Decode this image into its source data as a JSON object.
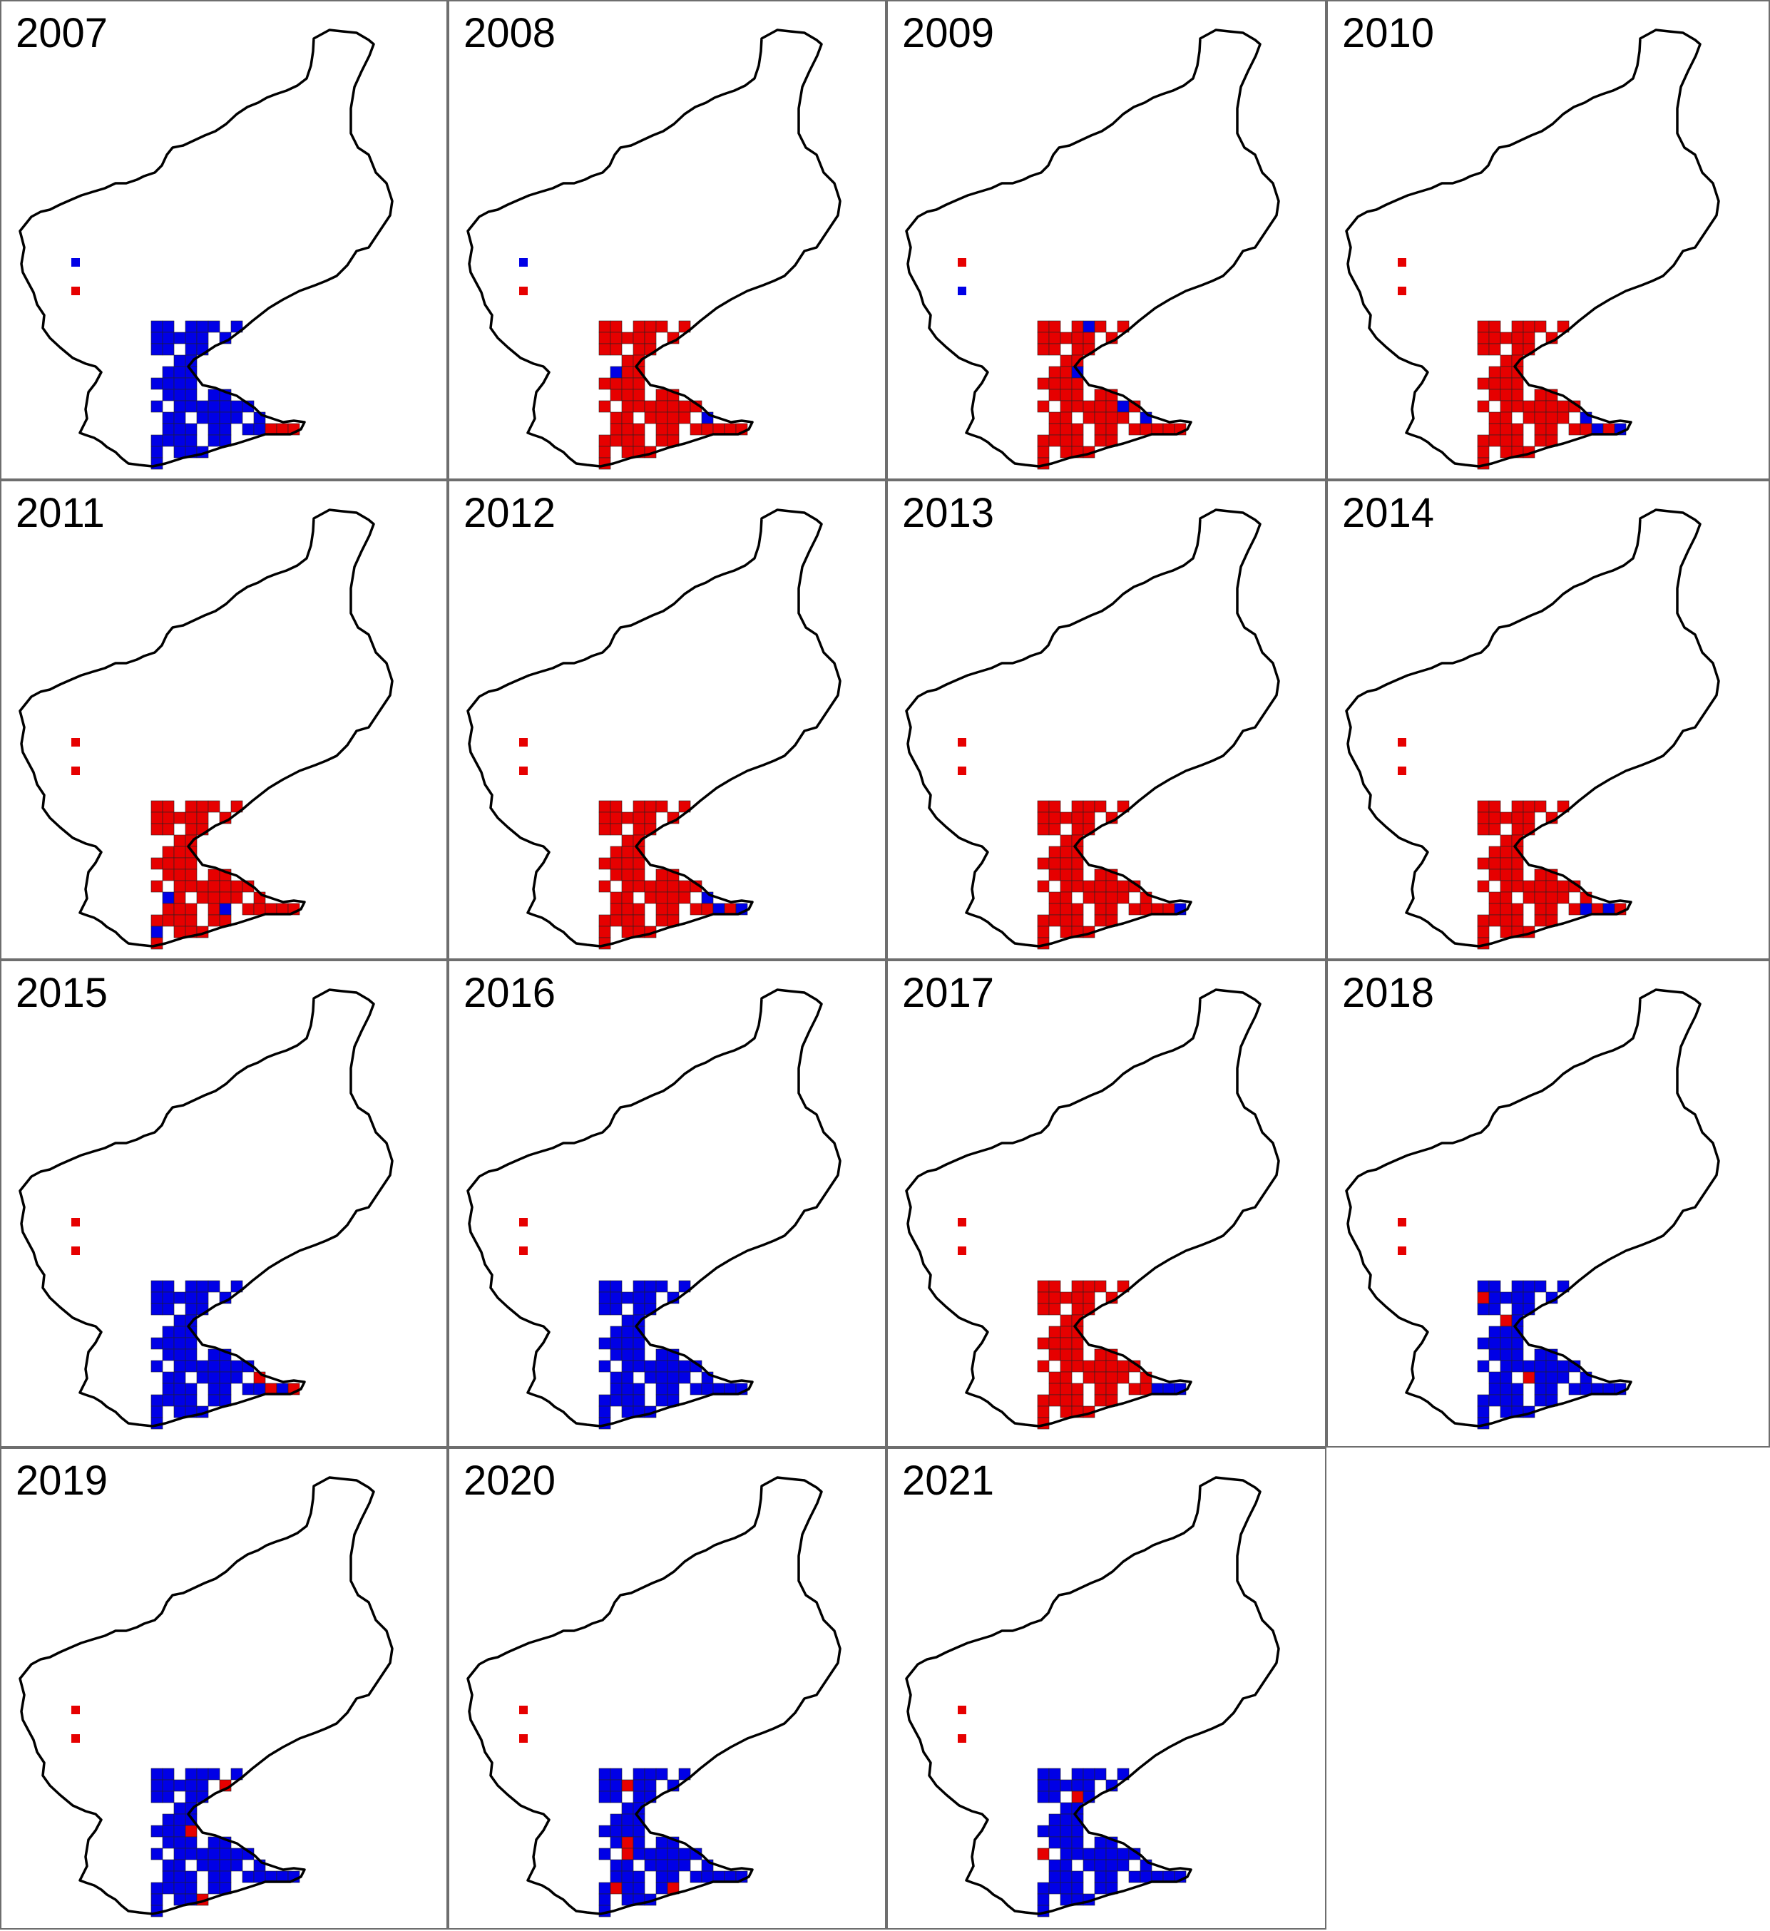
{
  "colors": {
    "red": "#e60000",
    "blue": "#0000e6",
    "outline": "#000000",
    "panel_border": "#6e6e6e"
  },
  "panels": [
    {
      "year": "2007",
      "dominant": "blue"
    },
    {
      "year": "2008",
      "dominant": "red"
    },
    {
      "year": "2009",
      "dominant": "red"
    },
    {
      "year": "2010",
      "dominant": "red"
    },
    {
      "year": "2011",
      "dominant": "red"
    },
    {
      "year": "2012",
      "dominant": "red"
    },
    {
      "year": "2013",
      "dominant": "red"
    },
    {
      "year": "2014",
      "dominant": "red"
    },
    {
      "year": "2015",
      "dominant": "blue"
    },
    {
      "year": "2016",
      "dominant": "blue"
    },
    {
      "year": "2017",
      "dominant": "red"
    },
    {
      "year": "2018",
      "dominant": "blue"
    },
    {
      "year": "2019",
      "dominant": "blue"
    },
    {
      "year": "2020",
      "dominant": "blue"
    },
    {
      "year": "2021",
      "dominant": "blue"
    }
  ]
}
